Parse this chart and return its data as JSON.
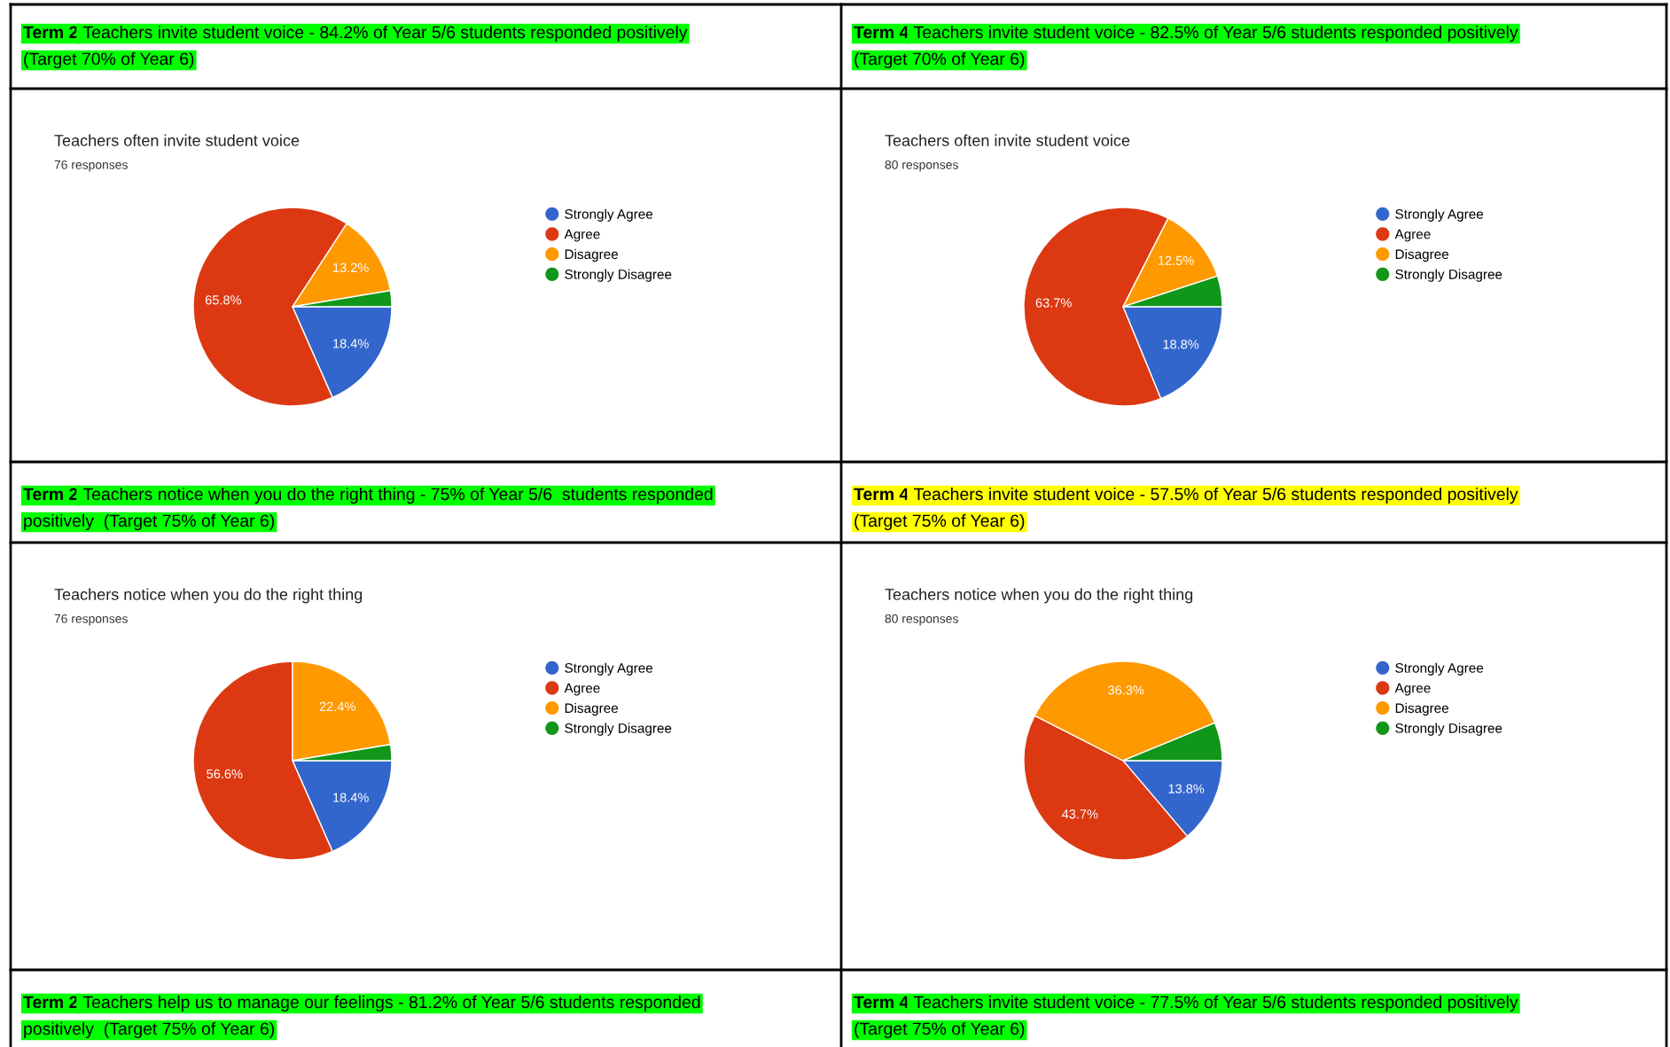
{
  "chart_data": [
    {
      "type": "pie",
      "title": "Teachers often invite student voice",
      "subtitle": "76 responses",
      "annotations": [
        "Term 2 Teachers invite student voice - 84.2% of Year 5/6 students responded positively\n(Target 70% of Year 6)"
      ],
      "categories": [
        "Strongly Agree",
        "Agree",
        "Disagree",
        "Strongly Disagree"
      ],
      "values": [
        18.4,
        65.8,
        13.2,
        2.6
      ],
      "value_labels": [
        "18.4%",
        "65.8%",
        "13.2%",
        null
      ],
      "colors": [
        "#3366cc",
        "#dc3912",
        "#ff9900",
        "#109618"
      ],
      "legend": "right"
    },
    {
      "type": "pie",
      "title": "Teachers often invite student voice",
      "subtitle": "80 responses",
      "annotations": [
        "Term 4 Teachers invite student voice - 82.5% of Year 5/6 students responded positively\n(Target 70% of Year 6)"
      ],
      "categories": [
        "Strongly Agree",
        "Agree",
        "Disagree",
        "Strongly Disagree"
      ],
      "values": [
        18.8,
        63.7,
        12.5,
        5.0
      ],
      "value_labels": [
        "18.8%",
        "63.7%",
        "12.5%",
        null
      ],
      "colors": [
        "#3366cc",
        "#dc3912",
        "#ff9900",
        "#109618"
      ],
      "legend": "right"
    },
    {
      "type": "pie",
      "title": "Teachers notice when you do the right thing",
      "subtitle": "76 responses",
      "annotations": [
        "Term 2 Teachers notice when you do the right thing - 75% of Year 5/6  students responded\npositively  (Target 75% of Year 6)",
        "Term 2 Teachers help us to manage our feelings - 81.2% of Year 5/6 students responded\npositively  (Target 75% of Year 6)"
      ],
      "categories": [
        "Strongly Agree",
        "Agree",
        "Disagree",
        "Strongly Disagree"
      ],
      "values": [
        18.4,
        56.6,
        22.4,
        2.6
      ],
      "value_labels": [
        "18.4%",
        "56.6%",
        "22.4%",
        null
      ],
      "colors": [
        "#3366cc",
        "#dc3912",
        "#ff9900",
        "#109618"
      ],
      "legend": "right"
    },
    {
      "type": "pie",
      "title": "Teachers notice when you do the right thing",
      "subtitle": "80 responses",
      "annotations": [
        "Term 4 Teachers invite student voice - 57.5% of Year 5/6 students responded positively\n(Target 75% of Year 6)",
        "Term 4 Teachers invite student voice - 77.5% of Year 5/6 students responded positively\n(Target 75% of Year 6)"
      ],
      "categories": [
        "Strongly Agree",
        "Agree",
        "Disagree",
        "Strongly Disagree"
      ],
      "values": [
        13.8,
        43.7,
        36.3,
        6.2
      ],
      "value_labels": [
        "13.8%",
        "43.7%",
        "36.3%",
        null
      ],
      "colors": [
        "#3366cc",
        "#dc3912",
        "#ff9900",
        "#109618"
      ],
      "legend": "right"
    }
  ]
}
